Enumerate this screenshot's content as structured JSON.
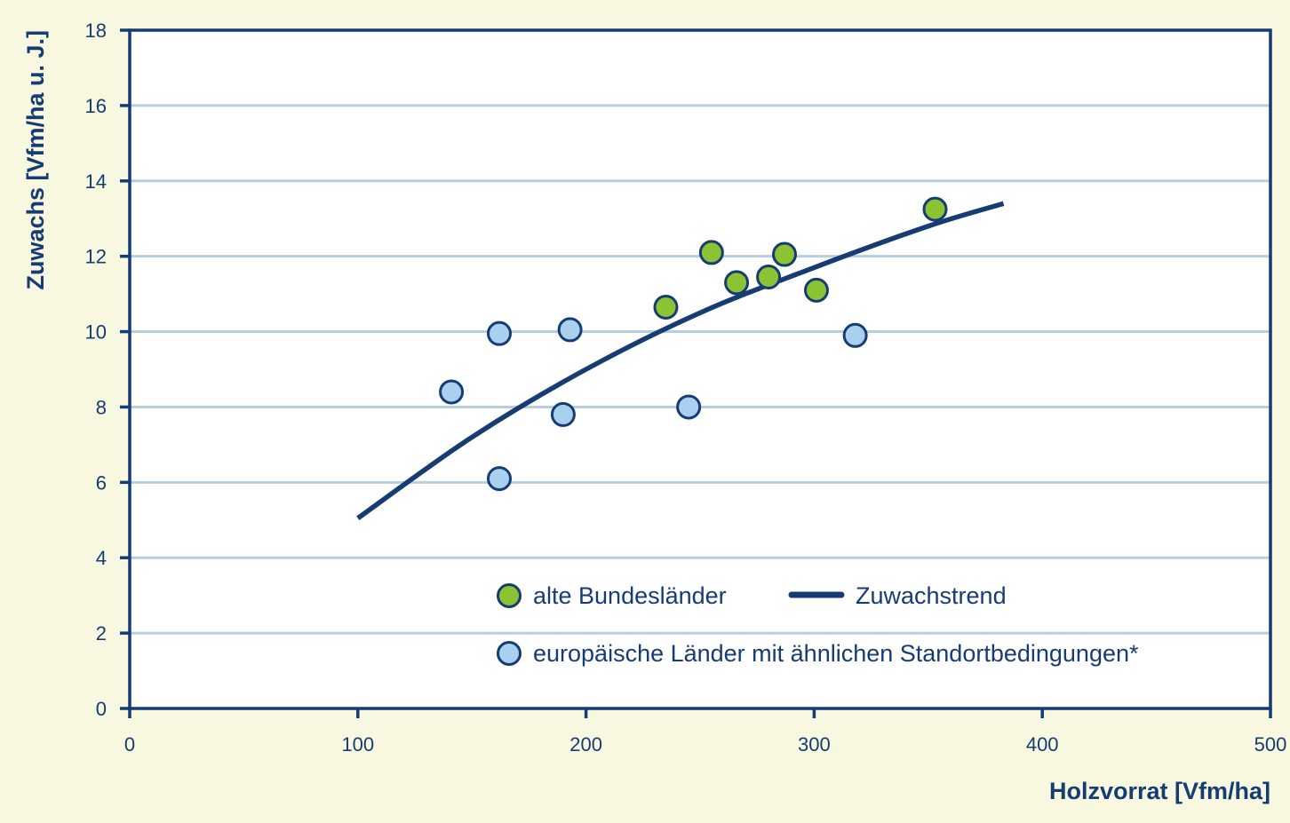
{
  "chart_data": {
    "type": "scatter",
    "xlabel": "Holzvorrat [Vfm/ha]",
    "ylabel": "Zuwachs [Vfm/ha u. J.]",
    "xlim": [
      0,
      500
    ],
    "ylim": [
      0,
      18
    ],
    "x_ticks": [
      "0",
      "100",
      "200",
      "300",
      "400",
      "500"
    ],
    "y_ticks": [
      "0",
      "2",
      "4",
      "6",
      "8",
      "10",
      "12",
      "14",
      "16",
      "18"
    ],
    "grid": "horizontal",
    "legend_placement": "bottom-right inside",
    "colors": {
      "axis": "#163c74",
      "grid": "#b7cde0",
      "background": "#f7f8df",
      "alte": "#8cc332",
      "europa": "#a9d0ef"
    },
    "series": [
      {
        "name": "alte Bundesländer",
        "color": "#8cc332",
        "points": [
          {
            "x": 235,
            "y": 10.65
          },
          {
            "x": 255,
            "y": 12.1
          },
          {
            "x": 266,
            "y": 11.3
          },
          {
            "x": 280,
            "y": 11.45
          },
          {
            "x": 287,
            "y": 12.05
          },
          {
            "x": 301,
            "y": 11.1
          },
          {
            "x": 353,
            "y": 13.25
          }
        ]
      },
      {
        "name": "europäische Länder mit ähnlichen Standortbedingungen*",
        "color": "#a9d0ef",
        "points": [
          {
            "x": 141,
            "y": 8.4
          },
          {
            "x": 162,
            "y": 9.95
          },
          {
            "x": 162,
            "y": 6.1
          },
          {
            "x": 190,
            "y": 7.8
          },
          {
            "x": 193,
            "y": 10.05
          },
          {
            "x": 245,
            "y": 8.0
          },
          {
            "x": 318,
            "y": 9.9
          }
        ]
      },
      {
        "name": "Zuwachstrend",
        "type": "line",
        "color": "#163c74",
        "points": [
          {
            "x": 100,
            "y": 5.05
          },
          {
            "x": 150,
            "y": 7.2
          },
          {
            "x": 200,
            "y": 9.0
          },
          {
            "x": 250,
            "y": 10.5
          },
          {
            "x": 300,
            "y": 11.7
          },
          {
            "x": 350,
            "y": 12.8
          },
          {
            "x": 383,
            "y": 13.4
          }
        ]
      }
    ]
  }
}
